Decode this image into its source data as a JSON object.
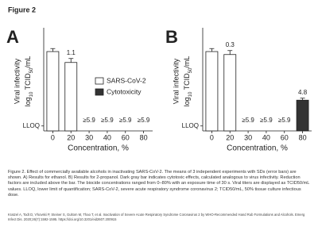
{
  "figure_label": "Figure 2",
  "chart_data": [
    {
      "type": "bar",
      "panel": "A",
      "ylabel": "Viral infectivity",
      "ylabel2": [
        "log",
        "10",
        " TCID",
        "50",
        "/mL"
      ],
      "xlabel": "Concentration, %",
      "categories": [
        "0",
        "20",
        "30",
        "40",
        "60",
        "80"
      ],
      "series": [
        {
          "name": "SARS-CoV-2",
          "color": "#ffffff",
          "values": [
            8.0,
            6.9,
            null,
            null,
            null,
            null
          ],
          "errors": [
            0.3,
            0.4,
            null,
            null,
            null,
            null
          ]
        },
        {
          "name": "Cytotoxicity",
          "color": "#333333",
          "values": [
            null,
            null,
            null,
            null,
            null,
            null
          ],
          "errors": [
            null,
            null,
            null,
            null,
            null,
            null
          ]
        }
      ],
      "reduction_labels": [
        null,
        "1.1",
        "≥5.9",
        "≥5.9",
        "≥5.9",
        "≥5.9"
      ],
      "ylim": [
        0,
        10
      ],
      "yticks": [
        {
          "value": 0.5,
          "label": "LLOQ"
        }
      ],
      "legend": "right"
    },
    {
      "type": "bar",
      "panel": "B",
      "ylabel": "Viral infectivity",
      "ylabel2": [
        "log",
        "10",
        " TCID",
        "50",
        "/mL"
      ],
      "xlabel": "Concentration, %",
      "categories": [
        "0",
        "20",
        "30",
        "40",
        "60",
        "80"
      ],
      "series": [
        {
          "name": "SARS-CoV-2",
          "color": "#ffffff",
          "values": [
            8.0,
            7.7,
            null,
            null,
            null,
            null
          ],
          "errors": [
            0.3,
            0.4,
            null,
            null,
            null,
            null
          ]
        },
        {
          "name": "Cytotoxicity",
          "color": "#333333",
          "values": [
            null,
            null,
            null,
            null,
            null,
            3.1
          ],
          "errors": [
            null,
            null,
            null,
            null,
            null,
            0.2
          ]
        }
      ],
      "reduction_labels": [
        null,
        "0.3",
        "≥5.9",
        "≥5.9",
        "≥5.9",
        "4.8"
      ],
      "ylim": [
        0,
        10
      ],
      "yticks": [
        {
          "value": 0.5,
          "label": "LLOQ"
        }
      ],
      "legend": "none"
    }
  ],
  "caption": "Figure 2. Effect of commercially available alcohols in inactivating SARS-CoV-2. The means of 3 independent experiments with SDs (error bars) are shown. A) Results for ethanol. B) Results for 2-propanol. Dark gray bar indicates cytotoxic effects, calculated analogous to virus infectivity. Reduction factors are included above the bar. The biocide concentrations ranged from 0–80% with an exposure time of 30 s. Viral titers are displayed as TCID50/mL values. LLOQ, lower limit of quantification; SARS-CoV-2, severe acute respiratory syndrome coronavirus 2; TCID50/mL, 50% tissue culture infectious dose.",
  "citation": "Kratzel A, Todt D, V'kovski P, Steiner S, Gultom M, Thao T, et al. Inactivation of Severe Acute Respiratory Syndrome Coronavirus 2 by WHO-Recommended Hand Rub Formulations and Alcohols. Emerg Infect Dis. 2020;26(7):1592-1595. https://doi.org/10.3201/eid2607.200915"
}
